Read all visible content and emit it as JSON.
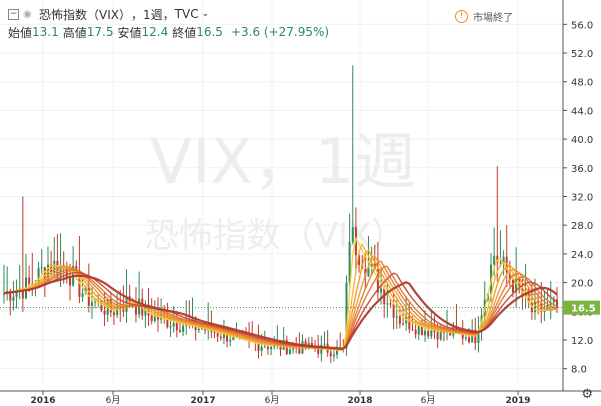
{
  "header": {
    "symbol": "恐怖指数（VIX）",
    "interval": "1週",
    "source": "TVC",
    "ohlc": [
      {
        "label": "始値",
        "value": "13.1"
      },
      {
        "label": "高値",
        "value": "17.5"
      },
      {
        "label": "安値",
        "value": "12.4"
      },
      {
        "label": "終値",
        "value": "16.5"
      }
    ],
    "change": "+3.6 (+27.95%)",
    "market_status": "市場終了"
  },
  "watermark": {
    "line1": "VIX，1週",
    "line2": "恐怖指数（VIX）"
  },
  "colors": {
    "up": "#2e8b57",
    "down": "#c0392b",
    "label": "#7cb342",
    "ma_dark": "#b03a2e",
    "ma_light": "#f4d03f"
  },
  "icons": {
    "collapse": "minus-box-icon",
    "visibility": "eye-icon",
    "dropdown": "chevron-down-icon",
    "alert": "warning-circle-icon",
    "settings": "gear-icon"
  },
  "chart_data": {
    "type": "candlestick",
    "interval": "1W",
    "ylim": [
      6,
      58
    ],
    "y_ticks": [
      "8.0",
      "12.0",
      "16.0",
      "20.0",
      "24.0",
      "28.0",
      "32.0",
      "36.0",
      "40.0",
      "44.0",
      "48.0",
      "52.0",
      "56.0"
    ],
    "x_ticks": [
      "2016",
      "6月",
      "2017",
      "6月",
      "2018",
      "6月",
      "2019"
    ],
    "last_value_label": "16.5",
    "last_value": 16.5,
    "moving_averages": 8,
    "anchors": [
      {
        "t": 0,
        "close": 18.5
      },
      {
        "t": 8,
        "close": 19.5
      },
      {
        "t": 14,
        "close": 22.5
      },
      {
        "t": 20,
        "close": 22.0
      },
      {
        "t": 26,
        "close": 18.0
      },
      {
        "t": 34,
        "close": 16.0
      },
      {
        "t": 40,
        "close": 17.5
      },
      {
        "t": 46,
        "close": 15.5
      },
      {
        "t": 54,
        "close": 14.5
      },
      {
        "t": 64,
        "close": 13.5
      },
      {
        "t": 72,
        "close": 12.5
      },
      {
        "t": 80,
        "close": 11.5
      },
      {
        "t": 90,
        "close": 11.0
      },
      {
        "t": 100,
        "close": 10.8
      },
      {
        "t": 108,
        "close": 10.5
      },
      {
        "t": 110,
        "close": 27.0
      },
      {
        "t": 116,
        "close": 22.0
      },
      {
        "t": 126,
        "close": 15.0
      },
      {
        "t": 134,
        "close": 13.5
      },
      {
        "t": 142,
        "close": 13.0
      },
      {
        "t": 150,
        "close": 12.5
      },
      {
        "t": 156,
        "close": 24.0
      },
      {
        "t": 162,
        "close": 20.0
      },
      {
        "t": 168,
        "close": 16.0
      },
      {
        "t": 176,
        "close": 16.5
      }
    ],
    "spikes": [
      {
        "t": 6,
        "high": 32.0
      },
      {
        "t": 24,
        "high": 26.5
      },
      {
        "t": 111,
        "high": 50.3
      },
      {
        "t": 116,
        "high": 26.5
      },
      {
        "t": 157,
        "high": 36.2
      },
      {
        "t": 160,
        "high": 28.0
      }
    ]
  }
}
